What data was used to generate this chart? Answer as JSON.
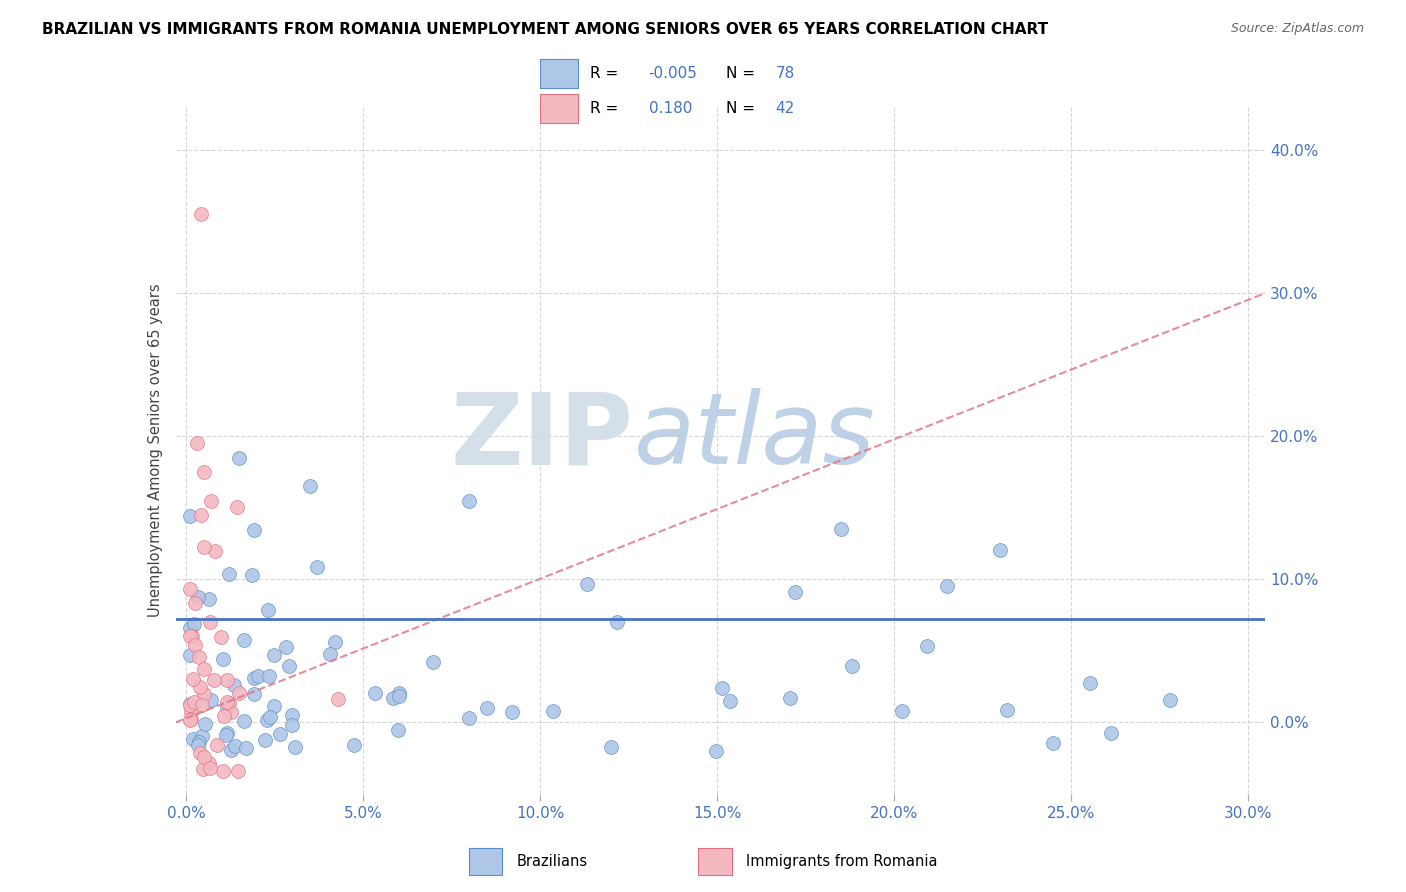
{
  "title": "BRAZILIAN VS IMMIGRANTS FROM ROMANIA UNEMPLOYMENT AMONG SENIORS OVER 65 YEARS CORRELATION CHART",
  "source": "Source: ZipAtlas.com",
  "ylabel": "Unemployment Among Seniors over 65 years",
  "watermark_zip": "ZIP",
  "watermark_atlas": "atlas",
  "xlim": [
    -0.003,
    0.305
  ],
  "ylim": [
    -0.05,
    0.43
  ],
  "xticks": [
    0.0,
    0.05,
    0.1,
    0.15,
    0.2,
    0.25,
    0.3
  ],
  "yticks": [
    0.0,
    0.1,
    0.2,
    0.3,
    0.4
  ],
  "series": [
    {
      "name": "Brazilians",
      "color": "#aec6e8",
      "edge_color": "#5b8ec4",
      "trend_color": "#4472c4",
      "trend_style": "-",
      "R": -0.005,
      "N": 78
    },
    {
      "name": "Immigrants from Romania",
      "color": "#f4b8c1",
      "edge_color": "#e07080",
      "trend_color": "#e07080",
      "trend_style": "--",
      "R": 0.18,
      "N": 42
    }
  ],
  "legend_R1": "-0.005",
  "legend_N1": "78",
  "legend_R2": "0.180",
  "legend_N2": "42",
  "braz_trend_y_start": 0.072,
  "braz_trend_y_end": 0.072,
  "rom_trend_y_start": 0.0,
  "rom_trend_y_end": 0.3,
  "marker_size": 100
}
